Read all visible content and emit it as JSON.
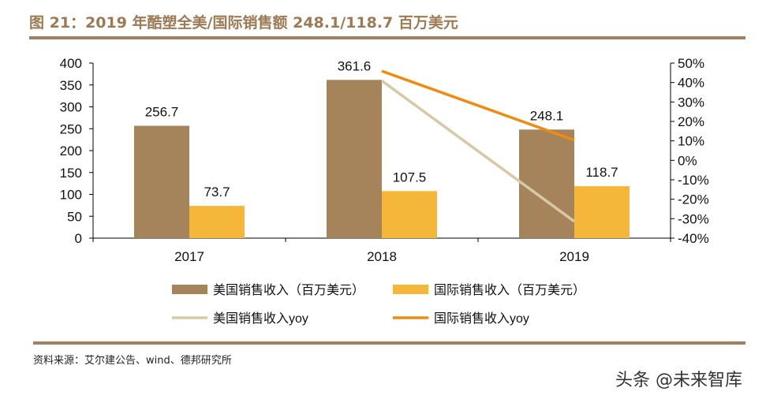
{
  "title": "图 21：2019 年酷塑全美/国际销售额 248.1/118.7 百万美元",
  "source": "资料来源：艾尔建公告、wind、德邦研究所",
  "watermark": "头条 @未来智库",
  "chart_data": {
    "type": "bar+line",
    "categories": [
      "2017",
      "2018",
      "2019"
    ],
    "left_axis": {
      "ylim": [
        0,
        400
      ],
      "ticks": [
        "0",
        "50",
        "100",
        "150",
        "200",
        "250",
        "300",
        "350",
        "400"
      ]
    },
    "right_axis": {
      "ylim": [
        -40,
        50
      ],
      "ticks": [
        "-40%",
        "-30%",
        "-20%",
        "-10%",
        "0%",
        "10%",
        "20%",
        "30%",
        "40%",
        "50%"
      ]
    },
    "grid": false,
    "legend_position": "bottom",
    "bar_series": [
      {
        "name": "美国销售收入（百万美元）",
        "values": [
          256.7,
          361.6,
          248.1
        ],
        "labels": [
          "256.7",
          "361.6",
          "248.1"
        ],
        "color": "#a5845b"
      },
      {
        "name": "国际销售收入（百万美元）",
        "values": [
          73.7,
          107.5,
          118.7
        ],
        "labels": [
          "73.7",
          "107.5",
          "118.7"
        ],
        "color": "#f4b73a"
      }
    ],
    "line_series": [
      {
        "name": "美国销售收入yoy",
        "values": [
          null,
          40.9,
          -31.4
        ],
        "color": "#d8c9a6"
      },
      {
        "name": "国际销售收入yoy",
        "values": [
          null,
          45.9,
          10.4
        ],
        "color": "#ee8c12"
      }
    ]
  }
}
